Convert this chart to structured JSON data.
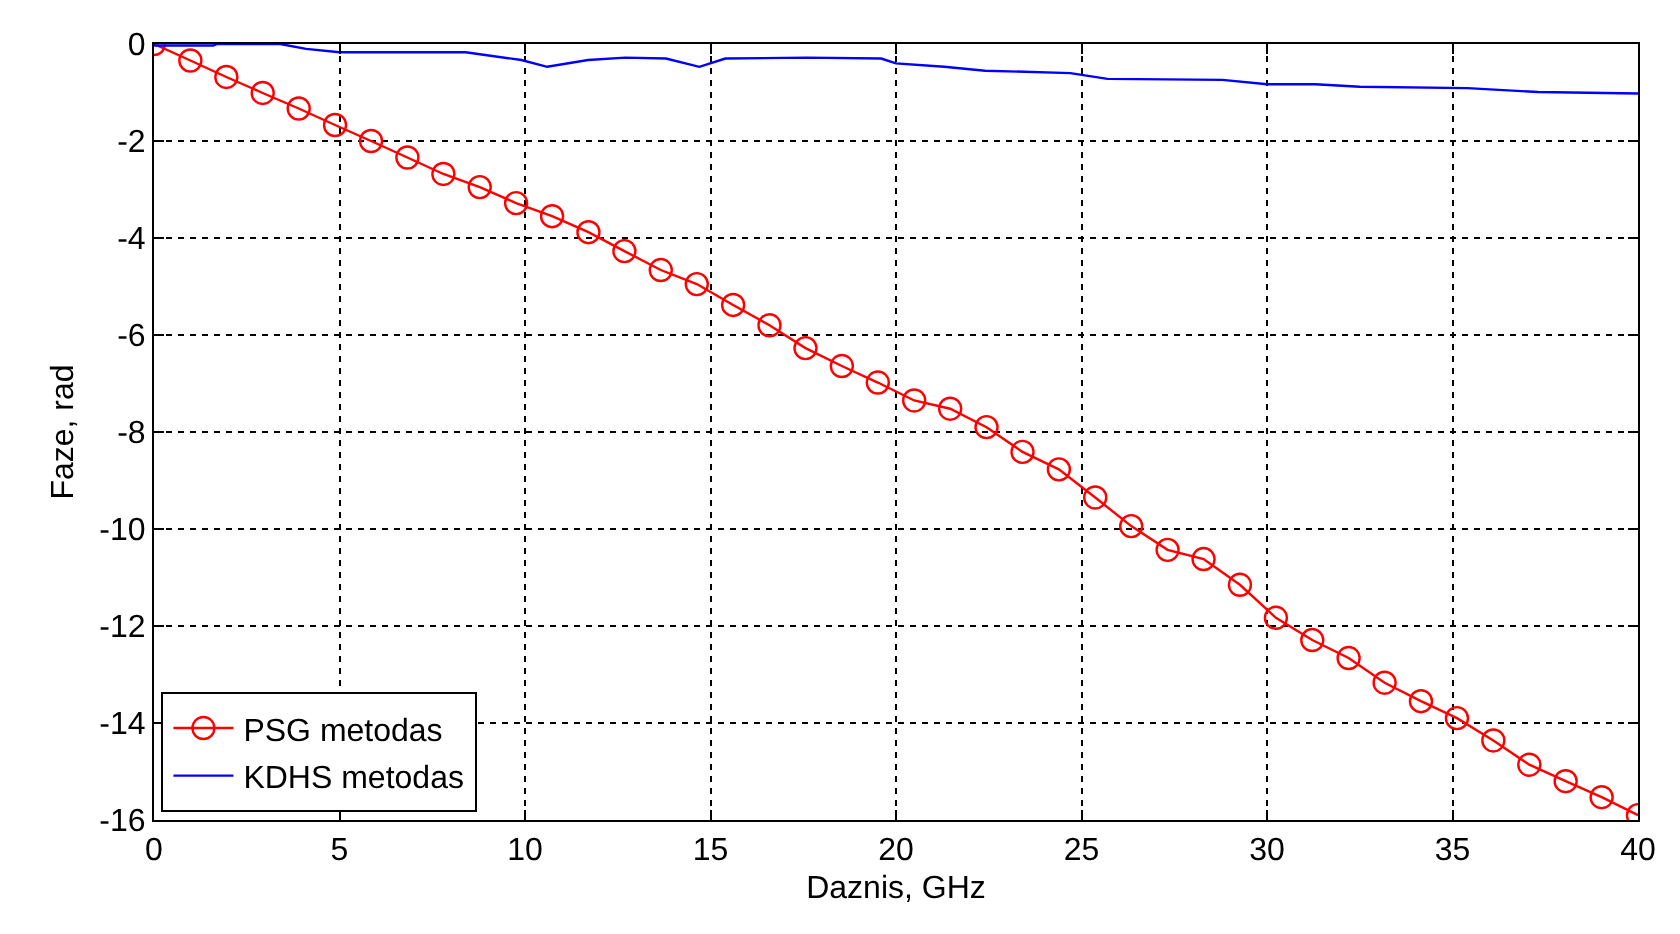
{
  "chart_data": {
    "type": "line",
    "xlabel": "Daznis, GHz",
    "ylabel": "Faze, rad",
    "xlim": [
      0,
      40
    ],
    "xticks": [
      0,
      5,
      10,
      15,
      20,
      25,
      30,
      35,
      40
    ],
    "ylim": [
      -16,
      0
    ],
    "yticks": [
      -16,
      -14,
      -12,
      -10,
      -8,
      -6,
      -4,
      -2,
      0
    ],
    "grid": true,
    "legend": "bottom left",
    "line_style": "solid",
    "series": [
      {
        "name": "PSG metodas",
        "color": "#ff0000",
        "marker": "circle",
        "x": [
          0,
          0.98,
          1.95,
          2.93,
          3.9,
          4.88,
          5.85,
          6.83,
          7.8,
          8.78,
          9.76,
          10.73,
          11.71,
          12.68,
          13.66,
          14.63,
          15.61,
          16.59,
          17.56,
          18.54,
          19.51,
          20.49,
          21.46,
          22.44,
          23.41,
          24.39,
          25.37,
          26.34,
          27.32,
          28.29,
          29.27,
          30.24,
          31.22,
          32.2,
          33.17,
          34.15,
          35.12,
          36.1,
          37.07,
          38.05,
          39.02,
          40
        ],
        "values": [
          0,
          -0.34,
          -0.68,
          -1.01,
          -1.33,
          -1.67,
          -2.0,
          -2.34,
          -2.68,
          -2.95,
          -3.28,
          -3.55,
          -3.88,
          -4.27,
          -4.66,
          -4.95,
          -5.38,
          -5.8,
          -6.27,
          -6.64,
          -6.98,
          -7.35,
          -7.52,
          -7.9,
          -8.41,
          -8.77,
          -9.35,
          -9.94,
          -10.43,
          -10.62,
          -11.15,
          -11.83,
          -12.29,
          -12.66,
          -13.17,
          -13.55,
          -13.9,
          -14.36,
          -14.86,
          -15.2,
          -15.53,
          -15.9
        ]
      },
      {
        "name": "KDHS metodas",
        "color": "#0000ff",
        "marker": "none",
        "x": [
          0,
          1.6,
          1.7,
          3.4,
          4.1,
          5,
          8.4,
          9.9,
          10.6,
          11.7,
          12.7,
          13.8,
          14.7,
          15.4,
          17.6,
          19.6,
          20,
          21.3,
          22.4,
          24.7,
          25.7,
          28.8,
          30,
          31.3,
          32.5,
          35.4,
          37.3,
          40
        ],
        "values": [
          -0.03,
          -0.03,
          0,
          0,
          -0.1,
          -0.17,
          -0.17,
          -0.33,
          -0.47,
          -0.33,
          -0.28,
          -0.3,
          -0.47,
          -0.3,
          -0.28,
          -0.3,
          -0.4,
          -0.47,
          -0.55,
          -0.6,
          -0.72,
          -0.74,
          -0.83,
          -0.83,
          -0.88,
          -0.91,
          -0.99,
          -1.02
        ]
      }
    ]
  }
}
